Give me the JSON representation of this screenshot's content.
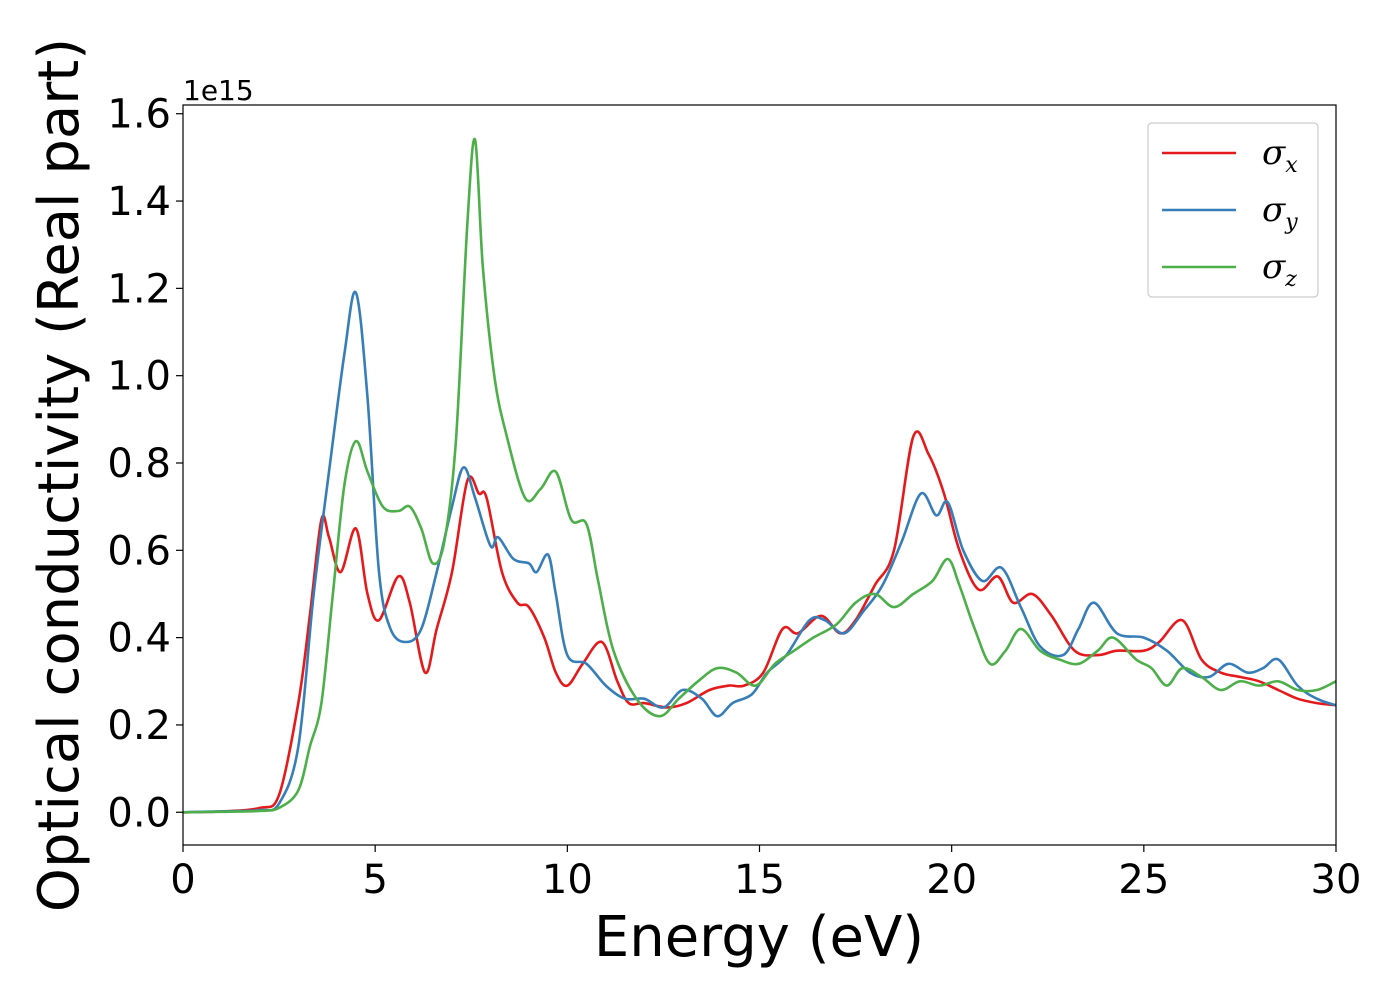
{
  "chart_data": {
    "type": "line",
    "xlabel": "Energy (eV)",
    "ylabel": "Optical conductivity (Real part)",
    "y_offset_label": "1e15",
    "xlim": [
      0,
      30
    ],
    "ylim": [
      -0.075,
      1.62
    ],
    "xticks": [
      0,
      5,
      10,
      15,
      20,
      25,
      30
    ],
    "yticks": [
      0.0,
      0.2,
      0.4,
      0.6,
      0.8,
      1.0,
      1.2,
      1.4,
      1.6
    ],
    "xtick_labels": [
      "0",
      "5",
      "10",
      "15",
      "20",
      "25",
      "30"
    ],
    "ytick_labels": [
      "0.0",
      "0.2",
      "0.4",
      "0.6",
      "0.8",
      "1.0",
      "1.2",
      "1.4",
      "1.6"
    ],
    "grid": false,
    "legend_position": "top-right",
    "series": [
      {
        "name": "σx",
        "symbol": "σ",
        "sub": "x",
        "color": "#e41a1c",
        "points": [
          [
            0,
            0
          ],
          [
            1,
            0.002
          ],
          [
            2,
            0.01
          ],
          [
            2.5,
            0.04
          ],
          [
            3,
            0.25
          ],
          [
            3.3,
            0.45
          ],
          [
            3.6,
            0.67
          ],
          [
            3.8,
            0.63
          ],
          [
            4.1,
            0.55
          ],
          [
            4.5,
            0.65
          ],
          [
            4.8,
            0.5
          ],
          [
            5.1,
            0.44
          ],
          [
            5.6,
            0.54
          ],
          [
            5.9,
            0.48
          ],
          [
            6.3,
            0.32
          ],
          [
            6.6,
            0.42
          ],
          [
            7,
            0.55
          ],
          [
            7.4,
            0.76
          ],
          [
            7.7,
            0.73
          ],
          [
            7.9,
            0.72
          ],
          [
            8.3,
            0.55
          ],
          [
            8.7,
            0.48
          ],
          [
            9,
            0.47
          ],
          [
            9.4,
            0.4
          ],
          [
            9.7,
            0.32
          ],
          [
            10,
            0.29
          ],
          [
            10.4,
            0.34
          ],
          [
            10.9,
            0.39
          ],
          [
            11.3,
            0.3
          ],
          [
            11.6,
            0.25
          ],
          [
            12,
            0.25
          ],
          [
            12.6,
            0.24
          ],
          [
            13.1,
            0.25
          ],
          [
            13.7,
            0.28
          ],
          [
            14.2,
            0.29
          ],
          [
            14.6,
            0.29
          ],
          [
            15.1,
            0.32
          ],
          [
            15.6,
            0.42
          ],
          [
            16,
            0.41
          ],
          [
            16.6,
            0.45
          ],
          [
            17.1,
            0.41
          ],
          [
            17.5,
            0.44
          ],
          [
            18,
            0.52
          ],
          [
            18.5,
            0.6
          ],
          [
            19,
            0.86
          ],
          [
            19.4,
            0.82
          ],
          [
            19.8,
            0.73
          ],
          [
            20.2,
            0.6
          ],
          [
            20.7,
            0.51
          ],
          [
            21.2,
            0.54
          ],
          [
            21.6,
            0.48
          ],
          [
            22.1,
            0.5
          ],
          [
            22.6,
            0.45
          ],
          [
            23.2,
            0.37
          ],
          [
            23.8,
            0.36
          ],
          [
            24.3,
            0.37
          ],
          [
            25,
            0.37
          ],
          [
            25.4,
            0.39
          ],
          [
            26,
            0.44
          ],
          [
            26.5,
            0.35
          ],
          [
            27,
            0.32
          ],
          [
            27.5,
            0.31
          ],
          [
            28,
            0.3
          ],
          [
            28.5,
            0.28
          ],
          [
            29,
            0.26
          ],
          [
            29.5,
            0.25
          ],
          [
            30,
            0.245
          ]
        ]
      },
      {
        "name": "σy",
        "symbol": "σ",
        "sub": "y",
        "color": "#377eb8",
        "points": [
          [
            0,
            0
          ],
          [
            1,
            0.002
          ],
          [
            2,
            0.005
          ],
          [
            2.5,
            0.02
          ],
          [
            3,
            0.15
          ],
          [
            3.4,
            0.5
          ],
          [
            3.8,
            0.78
          ],
          [
            4.2,
            1.05
          ],
          [
            4.5,
            1.19
          ],
          [
            4.8,
            0.95
          ],
          [
            5.1,
            0.55
          ],
          [
            5.4,
            0.42
          ],
          [
            5.8,
            0.39
          ],
          [
            6.2,
            0.42
          ],
          [
            6.6,
            0.55
          ],
          [
            7,
            0.7
          ],
          [
            7.3,
            0.79
          ],
          [
            7.6,
            0.72
          ],
          [
            8,
            0.61
          ],
          [
            8.2,
            0.63
          ],
          [
            8.6,
            0.58
          ],
          [
            9,
            0.57
          ],
          [
            9.2,
            0.55
          ],
          [
            9.5,
            0.59
          ],
          [
            9.7,
            0.5
          ],
          [
            10,
            0.36
          ],
          [
            10.5,
            0.34
          ],
          [
            11,
            0.29
          ],
          [
            11.5,
            0.26
          ],
          [
            12,
            0.26
          ],
          [
            12.5,
            0.24
          ],
          [
            13,
            0.28
          ],
          [
            13.5,
            0.26
          ],
          [
            13.9,
            0.22
          ],
          [
            14.3,
            0.25
          ],
          [
            14.8,
            0.27
          ],
          [
            15.2,
            0.32
          ],
          [
            15.7,
            0.36
          ],
          [
            16.3,
            0.44
          ],
          [
            16.7,
            0.44
          ],
          [
            17.2,
            0.41
          ],
          [
            17.7,
            0.46
          ],
          [
            18.2,
            0.52
          ],
          [
            18.7,
            0.62
          ],
          [
            19.2,
            0.73
          ],
          [
            19.6,
            0.68
          ],
          [
            19.9,
            0.71
          ],
          [
            20.3,
            0.6
          ],
          [
            20.8,
            0.53
          ],
          [
            21.3,
            0.56
          ],
          [
            21.8,
            0.47
          ],
          [
            22.3,
            0.38
          ],
          [
            22.9,
            0.36
          ],
          [
            23.3,
            0.42
          ],
          [
            23.7,
            0.48
          ],
          [
            24.3,
            0.41
          ],
          [
            25,
            0.4
          ],
          [
            25.6,
            0.37
          ],
          [
            26.2,
            0.32
          ],
          [
            26.7,
            0.31
          ],
          [
            27.2,
            0.34
          ],
          [
            27.7,
            0.32
          ],
          [
            28.1,
            0.33
          ],
          [
            28.5,
            0.35
          ],
          [
            29,
            0.29
          ],
          [
            29.5,
            0.26
          ],
          [
            30,
            0.245
          ]
        ]
      },
      {
        "name": "σz",
        "symbol": "σ",
        "sub": "z",
        "color": "#4daf4a",
        "points": [
          [
            0,
            0
          ],
          [
            1,
            0.001
          ],
          [
            2,
            0.003
          ],
          [
            2.5,
            0.01
          ],
          [
            3,
            0.05
          ],
          [
            3.3,
            0.15
          ],
          [
            3.6,
            0.25
          ],
          [
            3.9,
            0.5
          ],
          [
            4.2,
            0.75
          ],
          [
            4.5,
            0.85
          ],
          [
            4.8,
            0.78
          ],
          [
            5.2,
            0.7
          ],
          [
            5.6,
            0.69
          ],
          [
            5.9,
            0.7
          ],
          [
            6.2,
            0.65
          ],
          [
            6.5,
            0.57
          ],
          [
            6.8,
            0.62
          ],
          [
            7.1,
            0.85
          ],
          [
            7.4,
            1.35
          ],
          [
            7.6,
            1.54
          ],
          [
            7.8,
            1.25
          ],
          [
            8.1,
            1.0
          ],
          [
            8.4,
            0.87
          ],
          [
            8.9,
            0.72
          ],
          [
            9.3,
            0.74
          ],
          [
            9.7,
            0.78
          ],
          [
            10.1,
            0.67
          ],
          [
            10.5,
            0.66
          ],
          [
            10.8,
            0.53
          ],
          [
            11.2,
            0.37
          ],
          [
            11.8,
            0.26
          ],
          [
            12.4,
            0.22
          ],
          [
            12.9,
            0.26
          ],
          [
            13.4,
            0.3
          ],
          [
            13.9,
            0.33
          ],
          [
            14.4,
            0.32
          ],
          [
            14.9,
            0.29
          ],
          [
            15.4,
            0.34
          ],
          [
            15.9,
            0.37
          ],
          [
            16.4,
            0.4
          ],
          [
            17,
            0.43
          ],
          [
            17.5,
            0.48
          ],
          [
            18,
            0.5
          ],
          [
            18.5,
            0.47
          ],
          [
            19,
            0.5
          ],
          [
            19.5,
            0.53
          ],
          [
            19.9,
            0.58
          ],
          [
            20.2,
            0.52
          ],
          [
            20.6,
            0.42
          ],
          [
            21,
            0.34
          ],
          [
            21.4,
            0.37
          ],
          [
            21.8,
            0.42
          ],
          [
            22.3,
            0.37
          ],
          [
            22.8,
            0.35
          ],
          [
            23.3,
            0.34
          ],
          [
            23.8,
            0.37
          ],
          [
            24.2,
            0.4
          ],
          [
            24.8,
            0.35
          ],
          [
            25.2,
            0.33
          ],
          [
            25.6,
            0.29
          ],
          [
            26,
            0.33
          ],
          [
            26.5,
            0.31
          ],
          [
            27,
            0.28
          ],
          [
            27.5,
            0.3
          ],
          [
            28,
            0.29
          ],
          [
            28.5,
            0.3
          ],
          [
            29,
            0.28
          ],
          [
            29.5,
            0.28
          ],
          [
            30,
            0.3
          ]
        ]
      }
    ]
  }
}
